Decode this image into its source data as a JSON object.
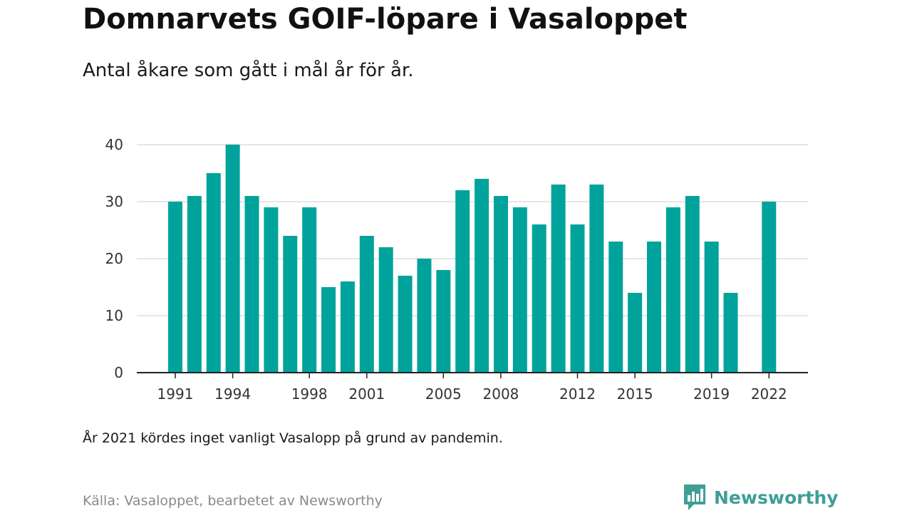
{
  "header": {
    "title": "Domnarvets GOIF-löpare i Vasaloppet",
    "subtitle": "Antal åkare som gått i mål år för år."
  },
  "footer": {
    "note": "År 2021 kördes inget vanligt Vasalopp på grund av pandemin.",
    "source": "Källa: Vasaloppet, bearbetet av Newsworthy",
    "brand": "Newsworthy",
    "brand_icon": "newsworthy-logo-icon"
  },
  "colors": {
    "bar": "#00a39b",
    "grid": "#dddddd",
    "axis": "#222222",
    "brand": "#3f9e96"
  },
  "chart_data": {
    "type": "bar",
    "title": "Domnarvets GOIF-löpare i Vasaloppet",
    "subtitle": "Antal åkare som gått i mål år för år.",
    "x": [
      1991,
      1992,
      1993,
      1994,
      1995,
      1996,
      1997,
      1998,
      1999,
      2000,
      2001,
      2002,
      2003,
      2004,
      2005,
      2006,
      2007,
      2008,
      2009,
      2010,
      2011,
      2012,
      2013,
      2014,
      2015,
      2016,
      2017,
      2018,
      2019,
      2020,
      2021,
      2022
    ],
    "values": [
      30,
      31,
      35,
      40,
      31,
      29,
      24,
      29,
      15,
      16,
      24,
      22,
      17,
      20,
      18,
      32,
      34,
      31,
      29,
      26,
      33,
      26,
      33,
      23,
      14,
      23,
      29,
      31,
      23,
      14,
      null,
      30
    ],
    "x_ticks": [
      1991,
      1994,
      1998,
      2001,
      2005,
      2008,
      2012,
      2015,
      2019,
      2022
    ],
    "y_ticks": [
      0,
      10,
      20,
      30,
      40
    ],
    "ylim": [
      0,
      40
    ],
    "xlabel": "",
    "ylabel": "",
    "grid": true,
    "legend": "none"
  }
}
